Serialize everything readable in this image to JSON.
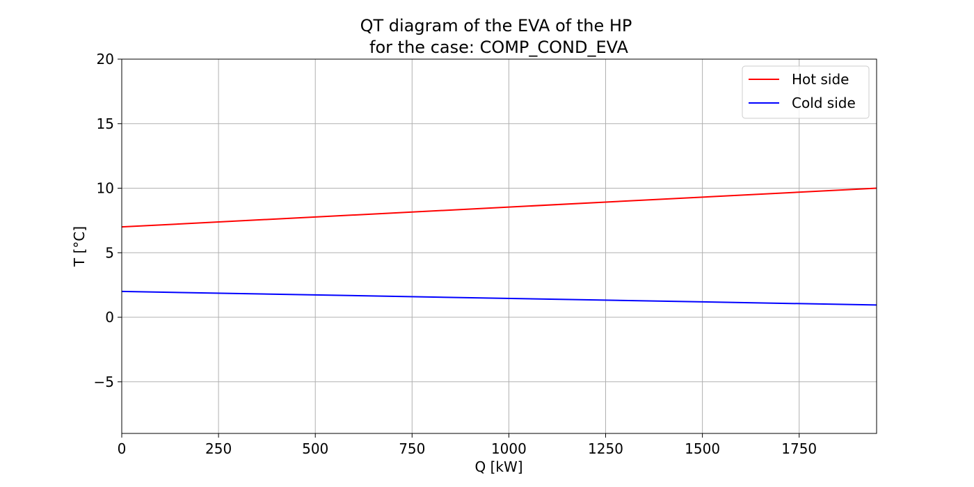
{
  "chart_data": {
    "type": "line",
    "title": "QT diagram of the EVA of the HP",
    "subtitle": "for the case: COMP_COND_EVA",
    "xlabel": "Q [kW]",
    "ylabel": "T [°C]",
    "xlim": [
      0,
      1950
    ],
    "ylim": [
      -9,
      20
    ],
    "xticks": [
      0,
      250,
      500,
      750,
      1000,
      1250,
      1500,
      1750
    ],
    "yticks": [
      -5,
      0,
      5,
      10,
      15,
      20
    ],
    "xtick_labels": [
      "0",
      "250",
      "500",
      "750",
      "1000",
      "1250",
      "1500",
      "1750"
    ],
    "ytick_labels": [
      "−5",
      "0",
      "5",
      "10",
      "15",
      "20"
    ],
    "grid": true,
    "legend_position": "top-right",
    "series": [
      {
        "name": "Hot side",
        "color": "#ff0000",
        "x": [
          0,
          1950
        ],
        "y": [
          7.0,
          10.0
        ]
      },
      {
        "name": "Cold side",
        "color": "#0000ff",
        "x": [
          0,
          1950
        ],
        "y": [
          2.0,
          0.95
        ]
      }
    ]
  }
}
